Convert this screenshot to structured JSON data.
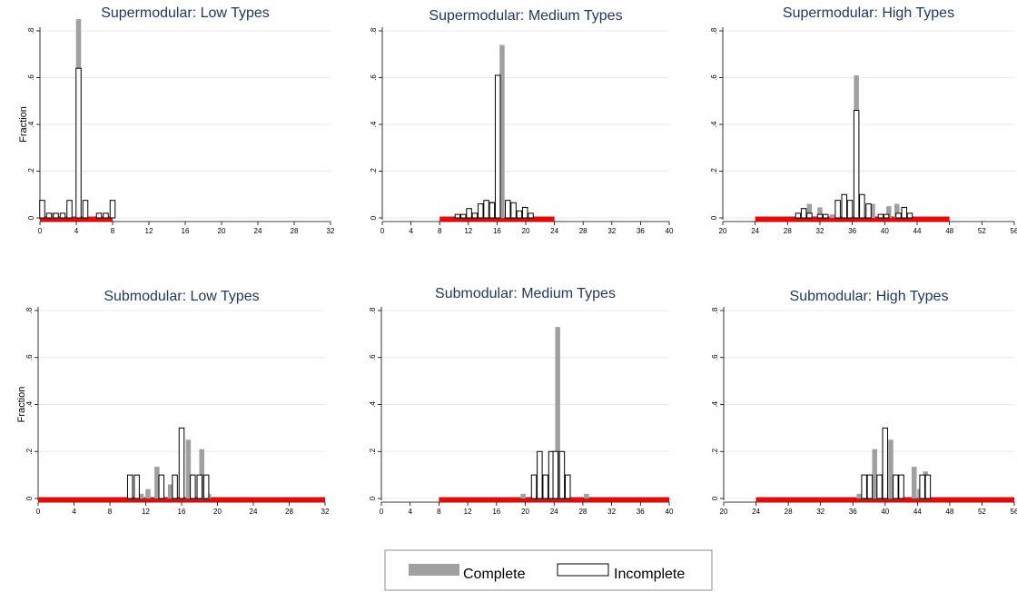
{
  "chart_data": [
    {
      "type": "bar",
      "title": "Supermodular: Low Types",
      "ylabel": "Fraction",
      "xlim": [
        0,
        32
      ],
      "ylim": [
        0,
        0.8
      ],
      "xticks": [
        "0",
        "4",
        "8",
        "12",
        "16",
        "20",
        "24",
        "28",
        "32"
      ],
      "yticks": [
        "0",
        ".2",
        ".4",
        ".6",
        ".8"
      ],
      "series": [
        {
          "name": "Complete",
          "x": [
            1.5,
            4.25
          ],
          "values": [
            0.02,
            0.85
          ]
        },
        {
          "name": "Incomplete",
          "x": [
            0.25,
            1,
            1.75,
            2.5,
            3.25,
            4.25,
            5,
            6.5,
            7.25,
            8
          ],
          "values": [
            0.075,
            0.02,
            0.02,
            0.02,
            0.075,
            0.64,
            0.075,
            0.02,
            0.02,
            0.075
          ]
        }
      ],
      "range_band": [
        0,
        8
      ]
    },
    {
      "type": "bar",
      "title": "Supermodular: Medium Types",
      "ylabel": "",
      "xlim": [
        0,
        40
      ],
      "ylim": [
        0,
        0.8
      ],
      "xticks": [
        "0",
        "4",
        "8",
        "12",
        "16",
        "20",
        "24",
        "28",
        "32",
        "36",
        "40"
      ],
      "yticks": [
        "0",
        ".2",
        ".4",
        ".6",
        ".8"
      ],
      "series": [
        {
          "name": "Complete",
          "x": [
            15.3,
            16.7,
            17.5,
            19
          ],
          "values": [
            0.07,
            0.74,
            0.065,
            0.03
          ]
        },
        {
          "name": "Incomplete",
          "x": [
            10.5,
            11.3,
            12.1,
            12.9,
            13.7,
            14.5,
            15.3,
            16.1,
            17.5,
            18.3,
            19.1,
            19.9,
            20.7
          ],
          "values": [
            0.015,
            0.015,
            0.04,
            0.02,
            0.06,
            0.075,
            0.065,
            0.61,
            0.075,
            0.065,
            0.03,
            0.045,
            0.02
          ]
        }
      ],
      "range_band": [
        8,
        24
      ]
    },
    {
      "type": "bar",
      "title": "Supermodular: High Types",
      "ylabel": "",
      "xlim": [
        20,
        56
      ],
      "ylim": [
        0,
        0.8
      ],
      "xticks": [
        "20",
        "24",
        "28",
        "32",
        "36",
        "40",
        "44",
        "48",
        "52",
        "56"
      ],
      "yticks": [
        "0",
        ".2",
        ".4",
        ".6",
        ".8"
      ],
      "series": [
        {
          "name": "Complete",
          "x": [
            30.7,
            32,
            33.5,
            36.5,
            38.5,
            40.5,
            41.5
          ],
          "values": [
            0.06,
            0.045,
            0.015,
            0.61,
            0.06,
            0.05,
            0.06
          ]
        },
        {
          "name": "Incomplete",
          "x": [
            29.3,
            30,
            30.7,
            32,
            32.7,
            34.2,
            35,
            35.7,
            36.5,
            37.2,
            38,
            39.5,
            40.2,
            41.7,
            42.4,
            43.1
          ],
          "values": [
            0.02,
            0.04,
            0.02,
            0.015,
            0.015,
            0.075,
            0.1,
            0.075,
            0.46,
            0.1,
            0.06,
            0.015,
            0.015,
            0.02,
            0.045,
            0.02
          ]
        }
      ],
      "range_band": [
        24,
        48
      ]
    },
    {
      "type": "bar",
      "title": "Submodular: Low Types",
      "ylabel": "Fraction",
      "xlim": [
        0,
        32
      ],
      "ylim": [
        0,
        0.8
      ],
      "xticks": [
        "0",
        "4",
        "8",
        "12",
        "16",
        "20",
        "24",
        "28",
        "32"
      ],
      "yticks": [
        "0",
        ".2",
        ".4",
        ".6",
        ".8"
      ],
      "series": [
        {
          "name": "Complete",
          "x": [
            11.5,
            12.25,
            13.25,
            14.75,
            16.75,
            18.25,
            19
          ],
          "values": [
            0.02,
            0.04,
            0.135,
            0.06,
            0.25,
            0.21,
            0.02
          ]
        },
        {
          "name": "Incomplete",
          "x": [
            10.25,
            11,
            13.75,
            15.25,
            16,
            17.25,
            18,
            18.75
          ],
          "values": [
            0.1,
            0.1,
            0.1,
            0.1,
            0.3,
            0.1,
            0.1,
            0.1
          ]
        }
      ],
      "range_band": [
        0,
        32
      ]
    },
    {
      "type": "bar",
      "title": "Submodular: Medium Types",
      "ylabel": "",
      "xlim": [
        0,
        40
      ],
      "ylim": [
        0,
        0.8
      ],
      "xticks": [
        "0",
        "4",
        "8",
        "12",
        "16",
        "20",
        "24",
        "28",
        "32",
        "36",
        "40"
      ],
      "yticks": [
        "0",
        ".2",
        ".4",
        ".6",
        ".8"
      ],
      "series": [
        {
          "name": "Complete",
          "x": [
            19.7,
            24.5,
            28.5
          ],
          "values": [
            0.02,
            0.73,
            0.02
          ]
        },
        {
          "name": "Incomplete",
          "x": [
            21.2,
            22,
            22.8,
            23.6,
            24.2,
            25.1,
            25.9
          ],
          "values": [
            0.1,
            0.2,
            0.1,
            0.2,
            0.2,
            0.2,
            0.1
          ]
        }
      ],
      "range_band": [
        8,
        40
      ]
    },
    {
      "type": "bar",
      "title": "Submodular: High Types",
      "ylabel": "",
      "xlim": [
        20,
        56
      ],
      "ylim": [
        0,
        0.8
      ],
      "xticks": [
        "20",
        "24",
        "28",
        "32",
        "36",
        "40",
        "44",
        "48",
        "52",
        "56"
      ],
      "yticks": [
        "0",
        ".2",
        ".4",
        ".6",
        ".8"
      ],
      "series": [
        {
          "name": "Complete",
          "x": [
            36.8,
            38.7,
            40.7,
            43.6,
            44.3,
            45
          ],
          "values": [
            0.02,
            0.21,
            0.25,
            0.135,
            0.04,
            0.115
          ]
        },
        {
          "name": "Incomplete",
          "x": [
            37.4,
            38.1,
            39.3,
            40,
            41.3,
            42,
            44.6,
            45.3
          ],
          "values": [
            0.1,
            0.1,
            0.1,
            0.3,
            0.1,
            0.1,
            0.1,
            0.1
          ]
        }
      ],
      "range_band": [
        24,
        56
      ]
    }
  ],
  "legend": {
    "position": "bottom-center",
    "items": [
      {
        "label": "Complete",
        "color": "#a0a0a0"
      },
      {
        "label": "Incomplete",
        "color": "#ffffff"
      }
    ]
  },
  "colors": {
    "title": "#1f3864",
    "complete_fill": "#a0a0a0",
    "incomplete_fill": "#ffffff",
    "incomplete_stroke": "#000000",
    "range_band": "#ff0000",
    "grid": "#e6eaee"
  }
}
